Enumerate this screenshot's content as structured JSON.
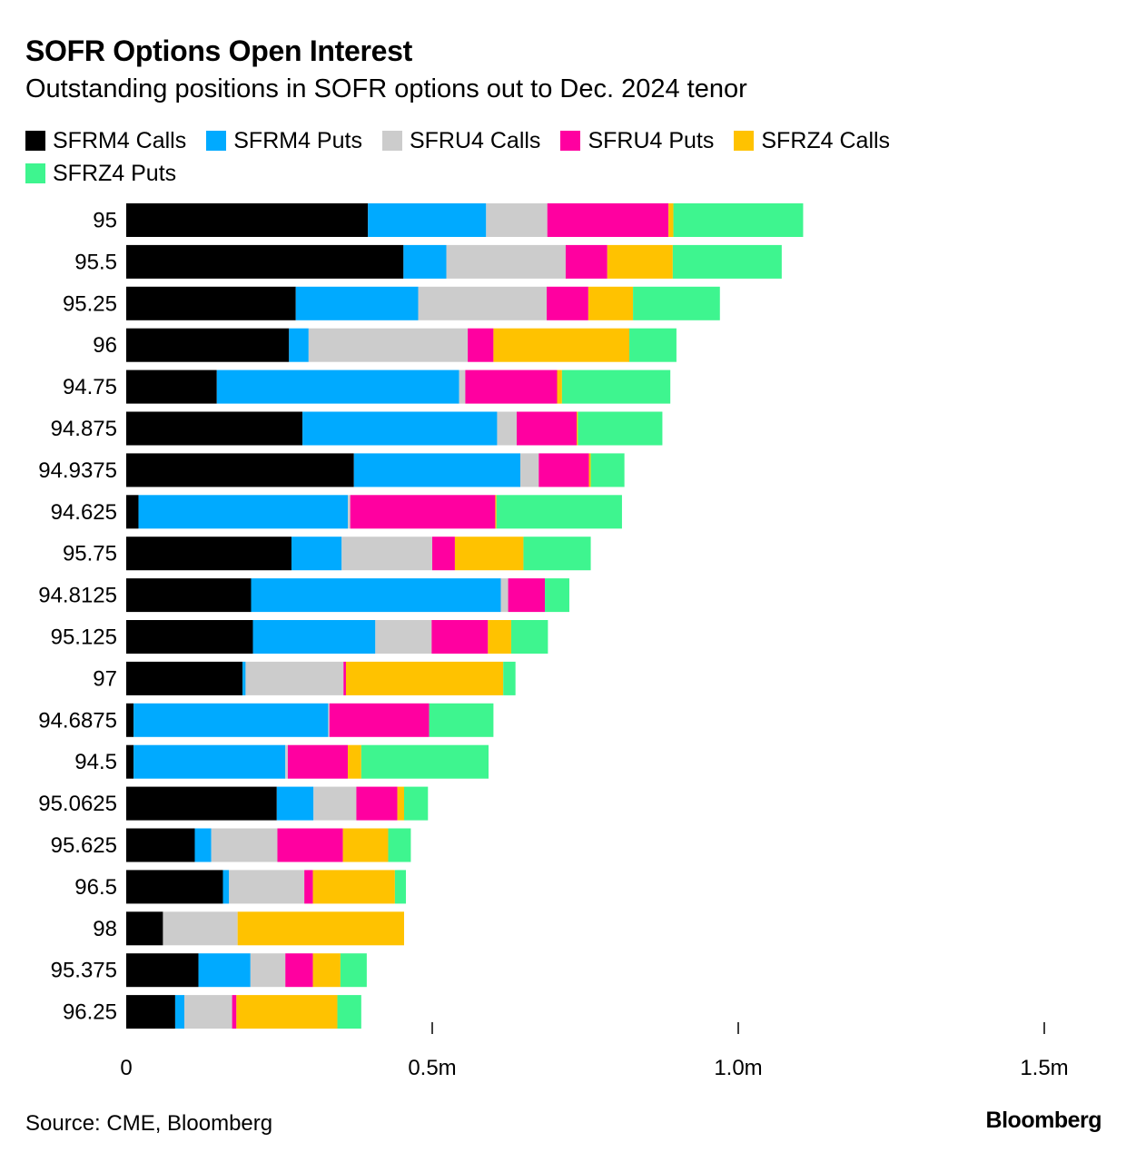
{
  "title": "SOFR Options Open Interest",
  "subtitle": "Outstanding positions in SOFR options out to Dec. 2024 tenor",
  "source": "Source: CME, Bloomberg",
  "logo": "Bloomberg",
  "legend": [
    {
      "name": "SFRM4 Calls",
      "color": "#000000"
    },
    {
      "name": "SFRM4 Puts",
      "color": "#00aaff"
    },
    {
      "name": "SFRU4 Calls",
      "color": "#cccccc"
    },
    {
      "name": "SFRU4 Puts",
      "color": "#ff00a0"
    },
    {
      "name": "SFRZ4 Calls",
      "color": "#ffc200"
    },
    {
      "name": "SFRZ4 Puts",
      "color": "#3ef58f"
    }
  ],
  "chart_data": {
    "type": "bar",
    "orientation": "horizontal",
    "stacked": true,
    "title": "SOFR Options Open Interest",
    "xlabel": "",
    "ylabel": "",
    "xlim": [
      0,
      1500000
    ],
    "xticks": [
      0,
      500000,
      1000000,
      1500000
    ],
    "xtick_labels": [
      "0",
      "0.5m",
      "1.0m",
      "1.5m"
    ],
    "categories": [
      "95",
      "95.5",
      "95.25",
      "96",
      "94.75",
      "94.875",
      "94.9375",
      "94.625",
      "95.75",
      "94.8125",
      "95.125",
      "97",
      "94.6875",
      "94.5",
      "95.0625",
      "95.625",
      "96.5",
      "98",
      "95.375",
      "96.25"
    ],
    "series": [
      {
        "name": "SFRM4 Calls",
        "color": "#000000",
        "values": [
          395000,
          453000,
          277000,
          266000,
          148000,
          288000,
          372000,
          20000,
          270000,
          204000,
          207000,
          190000,
          12000,
          12000,
          246000,
          112000,
          158000,
          60000,
          118000,
          80000
        ]
      },
      {
        "name": "SFRM4 Puts",
        "color": "#00aaff",
        "values": [
          193000,
          70000,
          200000,
          32000,
          396000,
          318000,
          272000,
          342000,
          82000,
          408000,
          200000,
          5000,
          318000,
          248000,
          60000,
          27000,
          10000,
          0,
          85000,
          15000
        ]
      },
      {
        "name": "SFRU4 Calls",
        "color": "#cccccc",
        "values": [
          100000,
          195000,
          210000,
          260000,
          10000,
          32000,
          30000,
          4000,
          148000,
          12000,
          92000,
          160000,
          2000,
          4000,
          70000,
          108000,
          123000,
          122000,
          57000,
          78000
        ]
      },
      {
        "name": "SFRU4 Puts",
        "color": "#ff00a0",
        "values": [
          198000,
          68000,
          68000,
          42000,
          150000,
          98000,
          82000,
          237000,
          37000,
          60000,
          92000,
          4000,
          163000,
          98000,
          67000,
          107000,
          14000,
          0,
          45000,
          7000
        ]
      },
      {
        "name": "SFRZ4 Calls",
        "color": "#ffc200",
        "values": [
          8000,
          107000,
          73000,
          222000,
          8000,
          2000,
          3000,
          2000,
          112000,
          0,
          38000,
          257000,
          0,
          22000,
          11000,
          74000,
          134000,
          272000,
          45000,
          165000
        ]
      },
      {
        "name": "SFRZ4 Puts",
        "color": "#3ef58f",
        "values": [
          212000,
          178000,
          142000,
          77000,
          177000,
          138000,
          55000,
          205000,
          110000,
          40000,
          60000,
          20000,
          105000,
          208000,
          39000,
          37000,
          18000,
          0,
          43000,
          39000
        ]
      }
    ]
  }
}
